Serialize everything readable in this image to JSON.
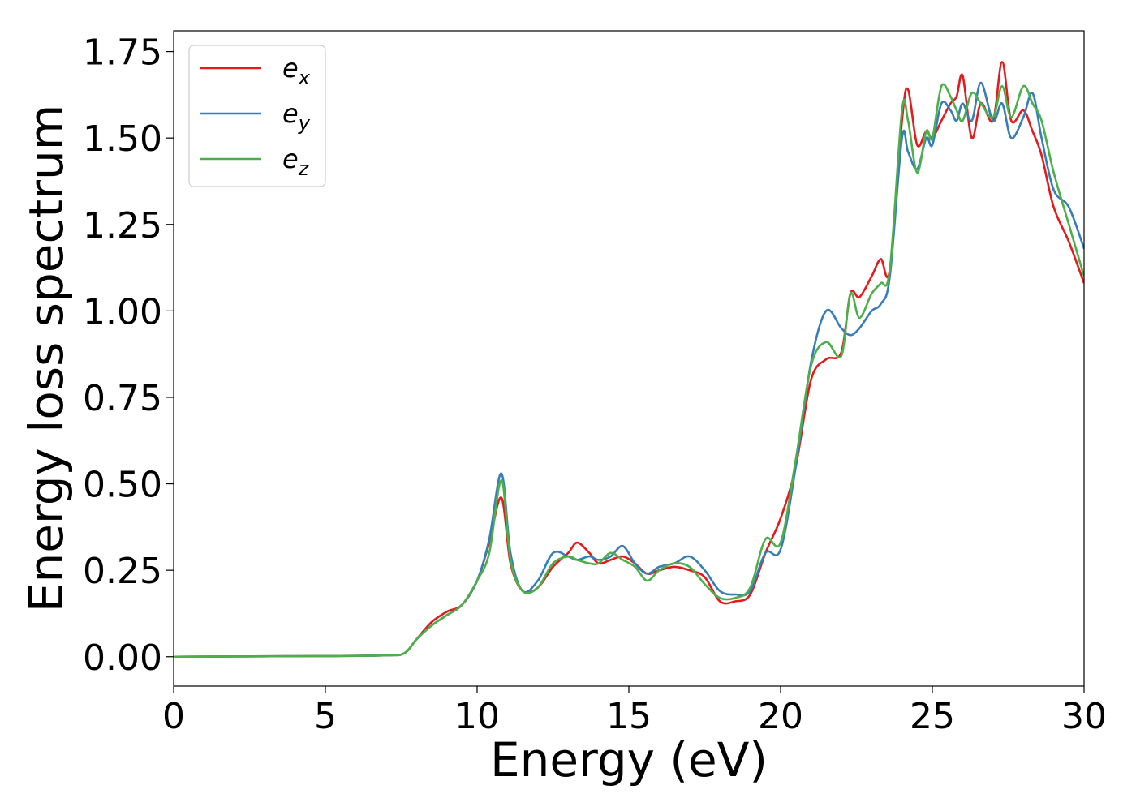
{
  "chart_data": {
    "type": "line",
    "title": "",
    "xlabel": "Energy (eV)",
    "ylabel": "Energy loss spectrum",
    "xlim": [
      0,
      30
    ],
    "ylim": [
      -0.085,
      1.81
    ],
    "xticks": [
      0,
      5,
      10,
      15,
      20,
      25,
      30
    ],
    "xtick_labels": [
      "0",
      "5",
      "10",
      "15",
      "20",
      "25",
      "30"
    ],
    "yticks": [
      0.0,
      0.25,
      0.5,
      0.75,
      1.0,
      1.25,
      1.5,
      1.75
    ],
    "ytick_labels": [
      "0.00",
      "0.25",
      "0.50",
      "0.75",
      "1.00",
      "1.25",
      "1.50",
      "1.75"
    ],
    "grid": false,
    "legend_position": "upper-left",
    "series": [
      {
        "name": "e_x",
        "base": "e",
        "sub": "x",
        "color": "#e41a1c",
        "x": [
          0,
          5,
          7,
          7.6,
          8,
          8.5,
          9,
          9.5,
          10,
          10.4,
          10.8,
          11.1,
          11.5,
          12,
          12.5,
          13,
          13.3,
          13.7,
          14,
          14.4,
          14.8,
          15.2,
          15.6,
          16,
          16.5,
          17,
          17.5,
          18,
          18.5,
          19,
          19.5,
          20,
          20.5,
          21,
          21.5,
          22,
          22.3,
          22.6,
          23,
          23.3,
          23.6,
          24,
          24.2,
          24.5,
          24.8,
          25,
          25.3,
          25.6,
          25.8,
          26,
          26.3,
          26.6,
          27,
          27.3,
          27.6,
          28,
          28.3,
          28.6,
          29,
          29.5,
          30
        ],
        "y": [
          0,
          0.002,
          0.004,
          0.01,
          0.05,
          0.1,
          0.13,
          0.15,
          0.22,
          0.33,
          0.46,
          0.27,
          0.19,
          0.2,
          0.26,
          0.3,
          0.33,
          0.3,
          0.27,
          0.28,
          0.29,
          0.27,
          0.24,
          0.25,
          0.26,
          0.25,
          0.23,
          0.16,
          0.16,
          0.18,
          0.3,
          0.4,
          0.55,
          0.8,
          0.86,
          0.88,
          1.05,
          1.04,
          1.1,
          1.15,
          1.12,
          1.55,
          1.64,
          1.48,
          1.52,
          1.5,
          1.55,
          1.6,
          1.62,
          1.68,
          1.5,
          1.6,
          1.55,
          1.72,
          1.55,
          1.58,
          1.52,
          1.45,
          1.3,
          1.2,
          1.08
        ]
      },
      {
        "name": "e_y",
        "base": "e",
        "sub": "y",
        "color": "#377eb8",
        "x": [
          0,
          5,
          7,
          7.6,
          8,
          8.5,
          9,
          9.5,
          10,
          10.4,
          10.8,
          11.1,
          11.5,
          12,
          12.5,
          13,
          13.3,
          13.7,
          14,
          14.4,
          14.8,
          15.2,
          15.6,
          16,
          16.5,
          17,
          17.5,
          18,
          18.5,
          19,
          19.5,
          20,
          20.5,
          21,
          21.5,
          22,
          22.3,
          22.6,
          23,
          23.3,
          23.6,
          24,
          24.2,
          24.5,
          24.8,
          25,
          25.3,
          25.6,
          25.8,
          26,
          26.3,
          26.6,
          27,
          27.3,
          27.6,
          28,
          28.3,
          28.6,
          29,
          29.5,
          30
        ],
        "y": [
          0,
          0.002,
          0.004,
          0.01,
          0.05,
          0.09,
          0.12,
          0.15,
          0.22,
          0.34,
          0.53,
          0.3,
          0.19,
          0.22,
          0.3,
          0.29,
          0.28,
          0.29,
          0.28,
          0.29,
          0.32,
          0.27,
          0.24,
          0.26,
          0.27,
          0.29,
          0.25,
          0.19,
          0.18,
          0.19,
          0.3,
          0.31,
          0.55,
          0.85,
          1.0,
          0.95,
          0.93,
          0.95,
          1.0,
          1.02,
          1.1,
          1.5,
          1.46,
          1.41,
          1.5,
          1.48,
          1.6,
          1.58,
          1.55,
          1.6,
          1.55,
          1.66,
          1.55,
          1.6,
          1.5,
          1.56,
          1.63,
          1.5,
          1.35,
          1.3,
          1.18
        ]
      },
      {
        "name": "e_z",
        "base": "e",
        "sub": "z",
        "color": "#4daf4a",
        "x": [
          0,
          5,
          7,
          7.6,
          8,
          8.5,
          9,
          9.5,
          10,
          10.4,
          10.8,
          11.1,
          11.5,
          12,
          12.5,
          13,
          13.3,
          13.7,
          14,
          14.4,
          14.8,
          15.2,
          15.6,
          16,
          16.5,
          17,
          17.5,
          18,
          18.5,
          19,
          19.5,
          20,
          20.5,
          21,
          21.5,
          22,
          22.3,
          22.6,
          23,
          23.3,
          23.6,
          24,
          24.2,
          24.5,
          24.8,
          25,
          25.3,
          25.6,
          25.8,
          26,
          26.3,
          26.6,
          27,
          27.3,
          27.6,
          28,
          28.3,
          28.6,
          29,
          29.5,
          30
        ],
        "y": [
          0,
          0.002,
          0.004,
          0.01,
          0.05,
          0.09,
          0.12,
          0.15,
          0.22,
          0.3,
          0.51,
          0.28,
          0.19,
          0.2,
          0.27,
          0.29,
          0.28,
          0.27,
          0.27,
          0.3,
          0.28,
          0.26,
          0.22,
          0.25,
          0.27,
          0.26,
          0.21,
          0.17,
          0.17,
          0.2,
          0.34,
          0.33,
          0.57,
          0.84,
          0.91,
          0.87,
          1.05,
          0.98,
          1.05,
          1.08,
          1.12,
          1.58,
          1.55,
          1.4,
          1.52,
          1.5,
          1.65,
          1.62,
          1.58,
          1.55,
          1.63,
          1.6,
          1.56,
          1.65,
          1.56,
          1.65,
          1.6,
          1.55,
          1.4,
          1.25,
          1.1
        ]
      }
    ]
  }
}
